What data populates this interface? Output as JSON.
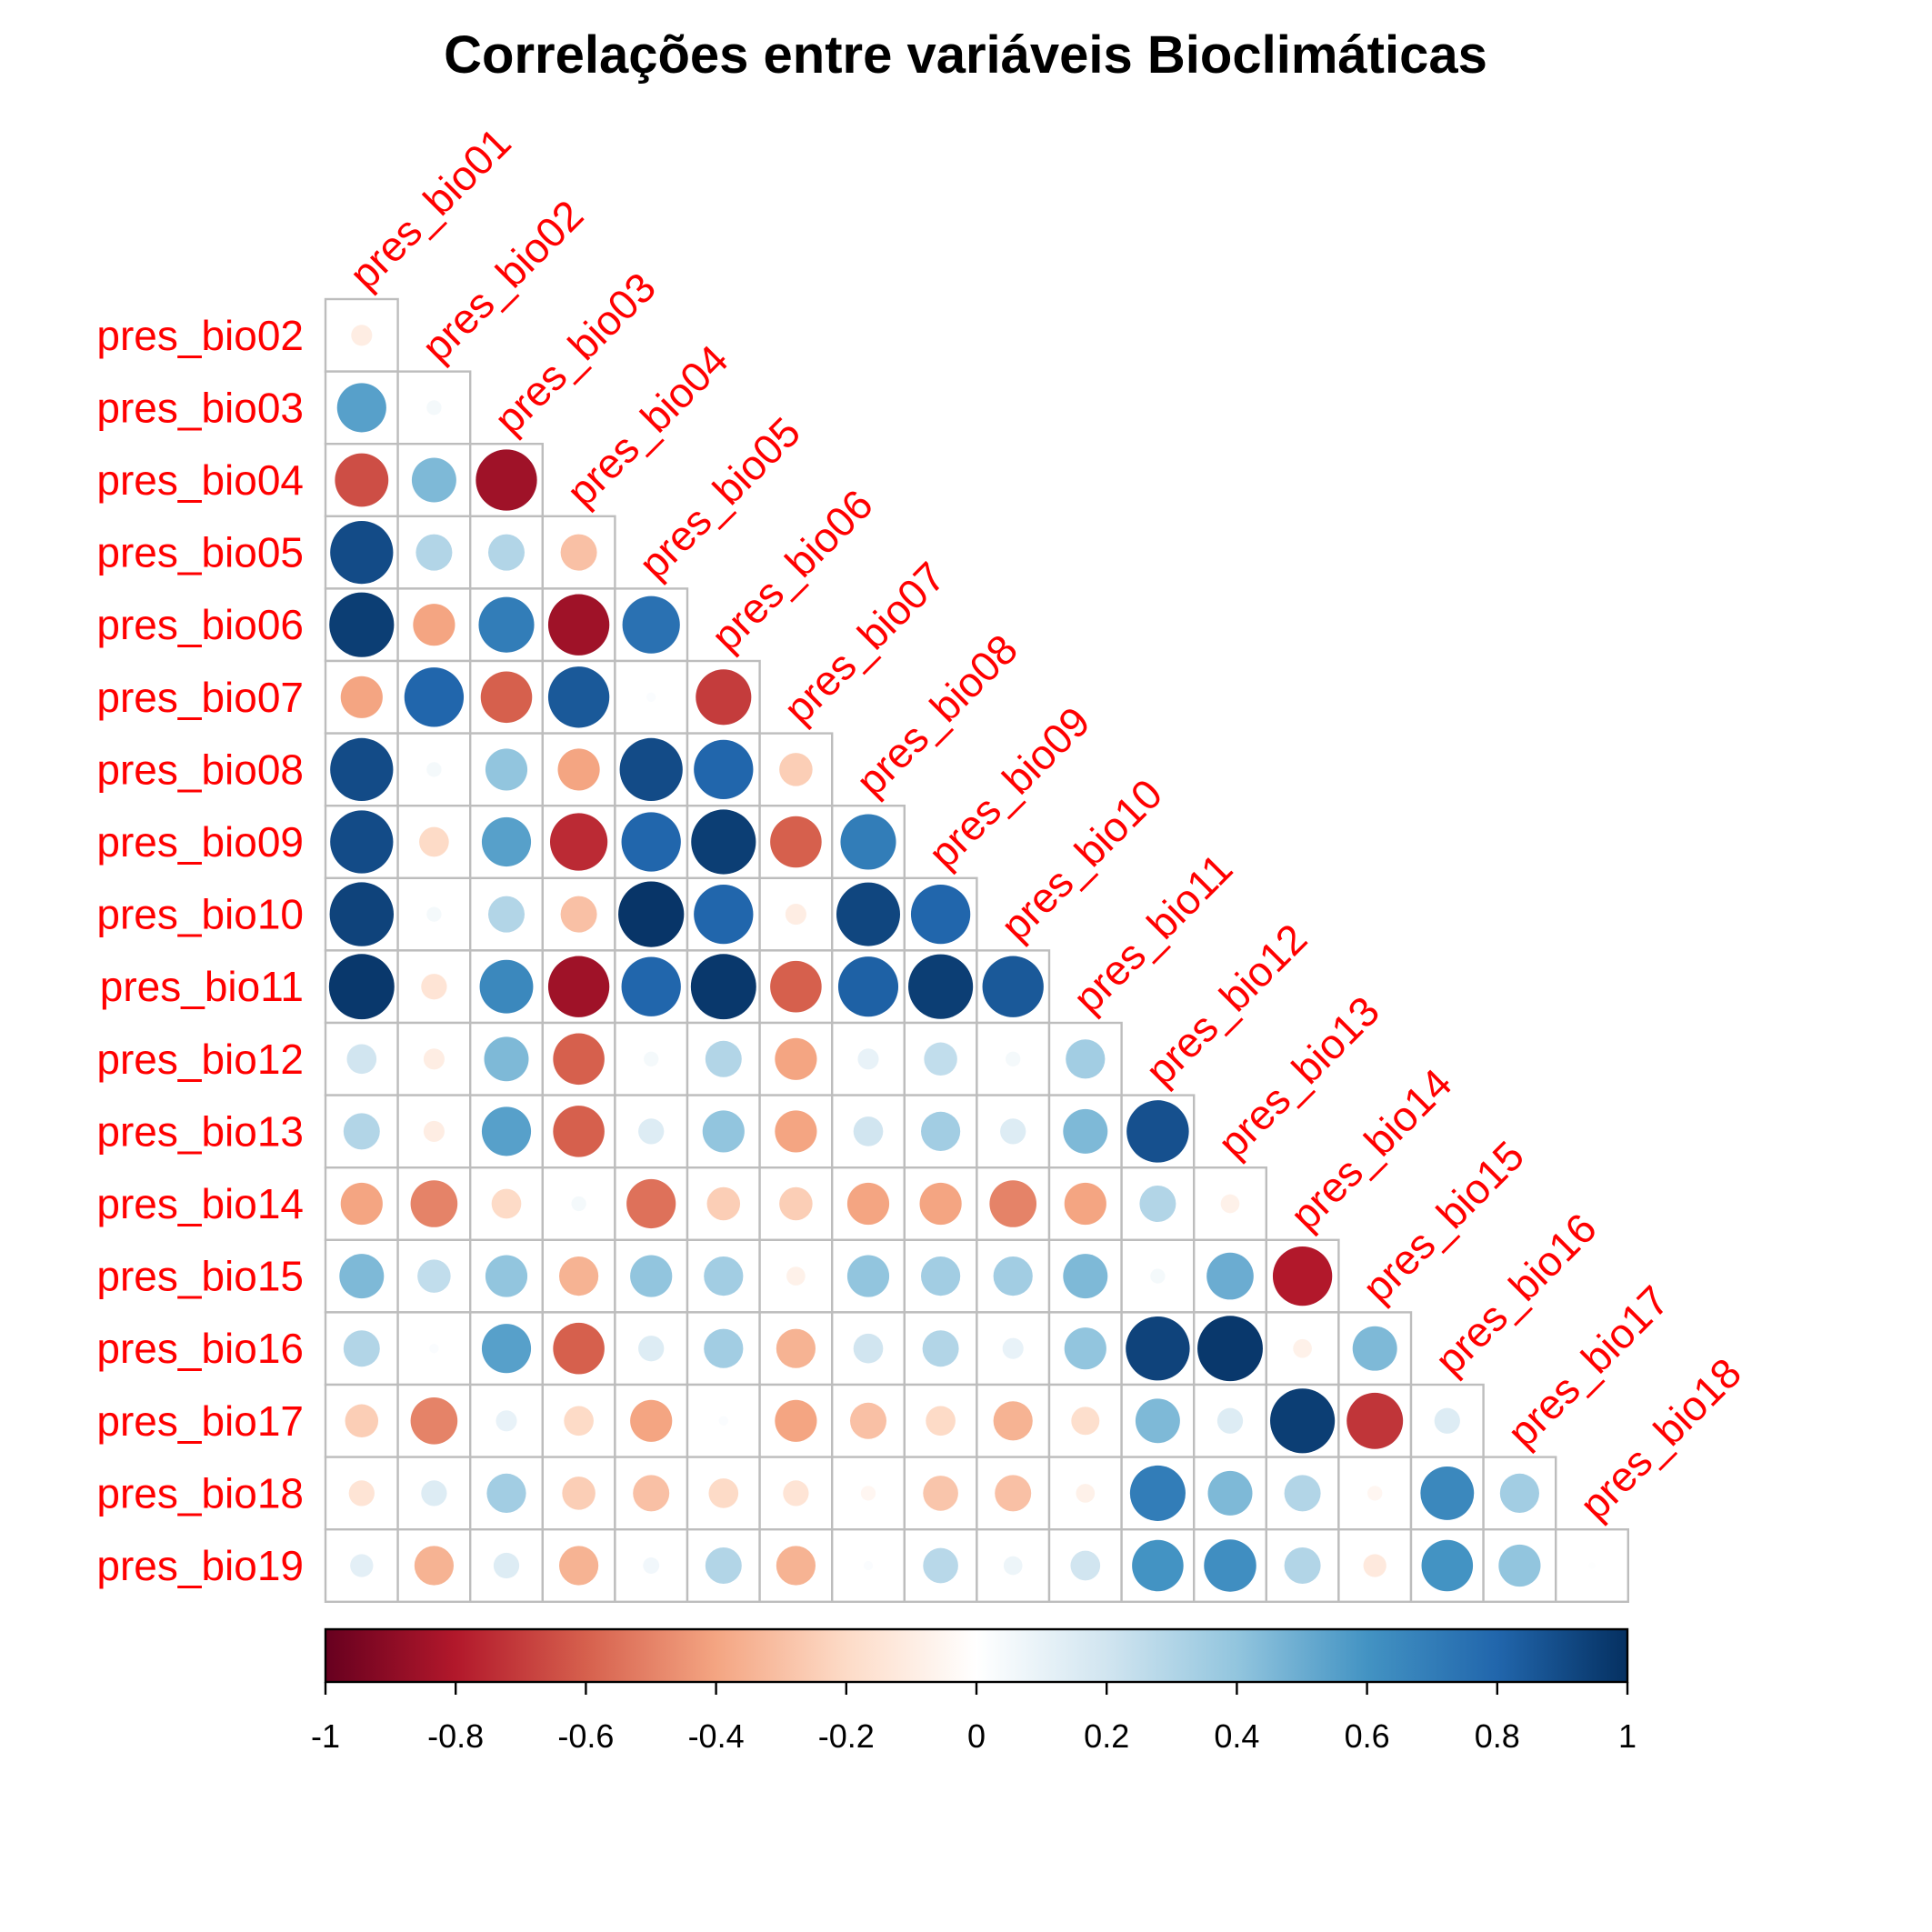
{
  "chart_data": {
    "type": "heatmap",
    "title": "Correlações entre variáveis Bioclimáticas",
    "column_labels": [
      "pres_bio01",
      "pres_bio02",
      "pres_bio03",
      "pres_bio04",
      "pres_bio05",
      "pres_bio06",
      "pres_bio07",
      "pres_bio08",
      "pres_bio09",
      "pres_bio10",
      "pres_bio11",
      "pres_bio12",
      "pres_bio13",
      "pres_bio14",
      "pres_bio15",
      "pres_bio16",
      "pres_bio17",
      "pres_bio18"
    ],
    "row_labels": [
      "pres_bio02",
      "pres_bio03",
      "pres_bio04",
      "pres_bio05",
      "pres_bio06",
      "pres_bio07",
      "pres_bio08",
      "pres_bio09",
      "pres_bio10",
      "pres_bio11",
      "pres_bio12",
      "pres_bio13",
      "pres_bio14",
      "pres_bio15",
      "pres_bio16",
      "pres_bio17",
      "pres_bio18",
      "pres_bio19"
    ],
    "values": [
      [
        -0.1
      ],
      [
        0.55,
        0.05
      ],
      [
        -0.65,
        0.45,
        -0.85
      ],
      [
        0.9,
        0.3,
        0.3,
        -0.3
      ],
      [
        0.95,
        -0.4,
        0.7,
        -0.85,
        0.75
      ],
      [
        -0.4,
        0.8,
        -0.6,
        0.85,
        0.02,
        -0.7
      ],
      [
        0.9,
        0.05,
        0.4,
        -0.4,
        0.9,
        0.8,
        -0.25
      ],
      [
        0.9,
        -0.2,
        0.55,
        -0.75,
        0.8,
        0.95,
        -0.6,
        0.7
      ],
      [
        0.93,
        0.05,
        0.3,
        -0.3,
        0.98,
        0.8,
        -0.1,
        0.92,
        0.8
      ],
      [
        0.97,
        -0.15,
        0.65,
        -0.85,
        0.8,
        0.97,
        -0.6,
        0.82,
        0.95,
        0.85
      ],
      [
        0.2,
        -0.1,
        0.45,
        -0.6,
        0.05,
        0.3,
        -0.4,
        0.1,
        0.25,
        0.05,
        0.35
      ],
      [
        0.3,
        -0.1,
        0.55,
        -0.6,
        0.15,
        0.4,
        -0.4,
        0.2,
        0.35,
        0.15,
        0.45,
        0.88
      ],
      [
        -0.4,
        -0.5,
        -0.2,
        0.05,
        -0.55,
        -0.25,
        -0.25,
        -0.4,
        -0.4,
        -0.5,
        -0.4,
        0.3,
        -0.08
      ],
      [
        0.45,
        0.25,
        0.4,
        -0.35,
        0.4,
        0.35,
        -0.08,
        0.4,
        0.35,
        0.35,
        0.45,
        0.05,
        0.5,
        -0.8
      ],
      [
        0.3,
        0.02,
        0.55,
        -0.6,
        0.15,
        0.35,
        -0.35,
        0.2,
        0.3,
        0.1,
        0.4,
        0.93,
        0.97,
        -0.08,
        0.45
      ],
      [
        -0.25,
        -0.5,
        0.1,
        -0.2,
        -0.4,
        0.02,
        -0.4,
        -0.3,
        -0.2,
        -0.35,
        -0.18,
        0.45,
        0.15,
        0.95,
        -0.72,
        0.15
      ],
      [
        -0.15,
        0.15,
        0.35,
        -0.25,
        -0.3,
        -0.2,
        -0.15,
        -0.05,
        -0.28,
        -0.3,
        -0.08,
        0.7,
        0.45,
        0.3,
        -0.05,
        0.65,
        0.35
      ],
      [
        0.12,
        -0.35,
        0.15,
        -0.35,
        0.06,
        0.3,
        -0.35,
        0.02,
        0.28,
        0.08,
        0.2,
        0.6,
        0.62,
        0.3,
        -0.12,
        0.6,
        0.4,
        0.01
      ]
    ],
    "colorbar": {
      "range": [
        -1,
        1
      ],
      "ticks": [
        "-1",
        "-0.8",
        "-0.6",
        "-0.4",
        "-0.2",
        "0",
        "0.2",
        "0.4",
        "0.6",
        "0.8",
        "1"
      ],
      "colors": [
        "#67001F",
        "#B2182B",
        "#D6604D",
        "#F4A582",
        "#FDDBC7",
        "#FFFFFF",
        "#D1E5F0",
        "#92C5DE",
        "#4393C3",
        "#2166AC",
        "#053061"
      ]
    },
    "legend": "bottom",
    "grid": true
  }
}
